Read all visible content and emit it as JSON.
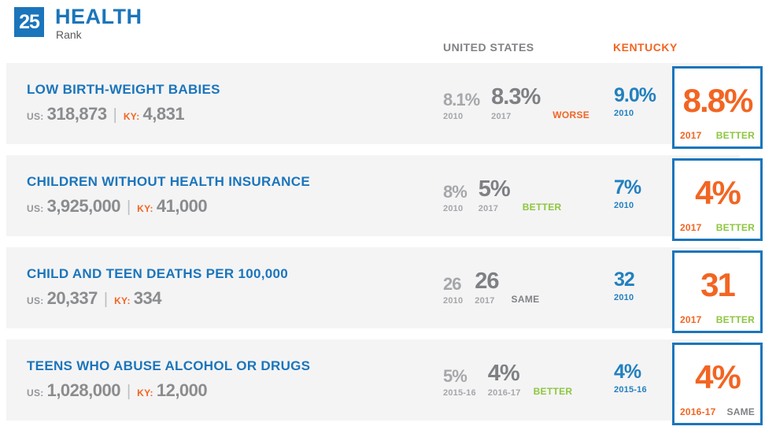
{
  "header": {
    "rank_value": "25",
    "category": "HEALTH",
    "rank_label": "Rank",
    "columns": {
      "us": "UNITED STATES",
      "ky": "KENTUCKY"
    }
  },
  "labels": {
    "us_prefix": "US:",
    "ky_prefix": "KY:",
    "separator": "|"
  },
  "colors": {
    "blue": "#1B75BB",
    "orange": "#F26522",
    "green": "#8DC63F",
    "gray": "#808285",
    "row_bg": "#F4F4F5"
  },
  "rows": [
    {
      "title": "LOW BIRTH-WEIGHT BABIES",
      "us_count": "318,873",
      "ky_count": "4,831",
      "us": {
        "v1": "8.1%",
        "y1": "2010",
        "v2": "8.3%",
        "y2": "2017",
        "status": "WORSE",
        "status_color": "#F26522"
      },
      "ky": {
        "v1": "9.0%",
        "y1": "2010"
      },
      "box": {
        "value": "8.8%",
        "year": "2017",
        "status": "BETTER",
        "status_color": "#8DC63F"
      }
    },
    {
      "title": "CHILDREN WITHOUT HEALTH INSURANCE",
      "us_count": "3,925,000",
      "ky_count": "41,000",
      "us": {
        "v1": "8%",
        "y1": "2010",
        "v2": "5%",
        "y2": "2017",
        "status": "BETTER",
        "status_color": "#8DC63F"
      },
      "ky": {
        "v1": "7%",
        "y1": "2010"
      },
      "box": {
        "value": "4%",
        "year": "2017",
        "status": "BETTER",
        "status_color": "#8DC63F"
      }
    },
    {
      "title": "CHILD AND TEEN DEATHS PER 100,000",
      "us_count": "20,337",
      "ky_count": "334",
      "us": {
        "v1": "26",
        "y1": "2010",
        "v2": "26",
        "y2": "2017",
        "status": "SAME",
        "status_color": "#808285"
      },
      "ky": {
        "v1": "32",
        "y1": "2010"
      },
      "box": {
        "value": "31",
        "year": "2017",
        "status": "BETTER",
        "status_color": "#8DC63F"
      }
    },
    {
      "title": "TEENS WHO ABUSE ALCOHOL OR DRUGS",
      "us_count": "1,028,000",
      "ky_count": "12,000",
      "us": {
        "v1": "5%",
        "y1": "2015-16",
        "v2": "4%",
        "y2": "2016-17",
        "status": "BETTER",
        "status_color": "#8DC63F"
      },
      "ky": {
        "v1": "4%",
        "y1": "2015-16"
      },
      "box": {
        "value": "4%",
        "year": "2016-17",
        "status": "SAME",
        "status_color": "#808285"
      }
    }
  ]
}
